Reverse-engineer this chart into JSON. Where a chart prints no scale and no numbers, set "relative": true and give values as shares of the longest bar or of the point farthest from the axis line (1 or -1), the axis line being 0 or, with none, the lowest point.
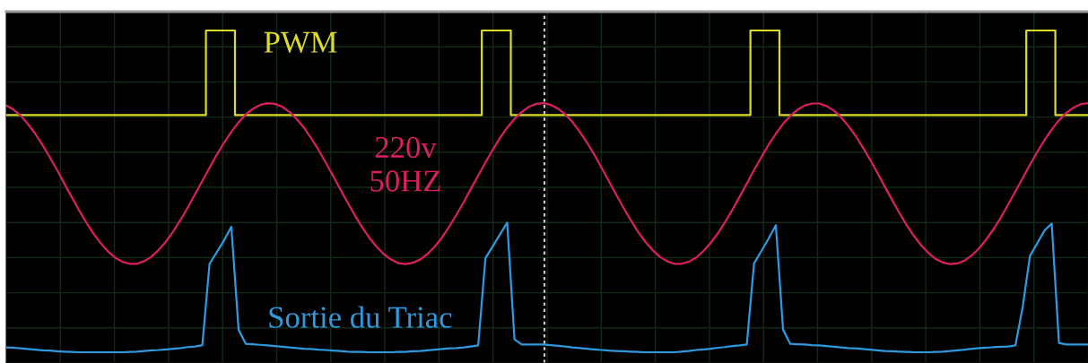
{
  "chart_data": {
    "type": "line",
    "relative": true,
    "grid": true,
    "categories": [
      null,
      null,
      null,
      null,
      null,
      null,
      null,
      null,
      null,
      null,
      null,
      null,
      null,
      null,
      null,
      null,
      null,
      null,
      null,
      null,
      null,
      null,
      null,
      null,
      null,
      null,
      null,
      null,
      null,
      null,
      null,
      null,
      null,
      null,
      null,
      null,
      null,
      null,
      null,
      null,
      null,
      null,
      null,
      null,
      null,
      null,
      null,
      null,
      null,
      null,
      null,
      null,
      null,
      null,
      null,
      null,
      null,
      null,
      null,
      null,
      null,
      null,
      null,
      null,
      null,
      null,
      null,
      null,
      null,
      null,
      null,
      null,
      null,
      null,
      null,
      null,
      null,
      null,
      null,
      null,
      null,
      null,
      null,
      null,
      null,
      null,
      null,
      null,
      null,
      null,
      null,
      null,
      null,
      null,
      null,
      null,
      null,
      null,
      null,
      null,
      null,
      null,
      null,
      null,
      null,
      null,
      null,
      null,
      null,
      null,
      null,
      null,
      null,
      null,
      null,
      null,
      null,
      null,
      null,
      null,
      null,
      null,
      null,
      null,
      null,
      null,
      null,
      null,
      null,
      null,
      null,
      null,
      null,
      null,
      null,
      null,
      null,
      null,
      null,
      null,
      null,
      null,
      null,
      null,
      null,
      null,
      null,
      null,
      null,
      null
    ],
    "series": [
      {
        "name": "PWM",
        "type": "step",
        "color": "#dcdc28",
        "values": [
          0.737,
          0.737,
          0.737,
          0.737,
          0.737,
          0.737,
          0.737,
          0.737,
          0.737,
          0.737,
          0.737,
          0.737,
          0.737,
          0.737,
          0.737,
          0.737,
          0.737,
          0.737,
          0.737,
          0.737,
          0.737,
          0.737,
          0.737,
          0.737,
          0.737,
          0.737,
          0.737,
          0.737,
          1.0,
          1.0,
          1.0,
          1.0,
          0.737,
          0.737,
          0.737,
          0.737,
          0.737,
          0.737,
          0.737,
          0.737,
          0.737,
          0.737,
          0.737,
          0.737,
          0.737,
          0.737,
          0.737,
          0.737,
          0.737,
          0.737,
          0.737,
          0.737,
          0.737,
          0.737,
          0.737,
          0.737,
          0.737,
          0.737,
          0.737,
          0.737,
          0.737,
          0.737,
          0.737,
          0.737,
          0.737,
          0.737,
          1.0,
          1.0,
          1.0,
          1.0,
          0.737,
          0.737,
          0.737,
          0.737,
          0.737,
          0.737,
          0.737,
          0.737,
          0.737,
          0.737,
          0.737,
          0.737,
          0.737,
          0.737,
          0.737,
          0.737,
          0.737,
          0.737,
          0.737,
          0.737,
          0.737,
          0.737,
          0.737,
          0.737,
          0.737,
          0.737,
          0.737,
          0.737,
          0.737,
          0.737,
          0.737,
          0.737,
          0.737,
          1.0,
          1.0,
          1.0,
          1.0,
          0.737,
          0.737,
          0.737,
          0.737,
          0.737,
          0.737,
          0.737,
          0.737,
          0.737,
          0.737,
          0.737,
          0.737,
          0.737,
          0.737,
          0.737,
          0.737,
          0.737,
          0.737,
          0.737,
          0.737,
          0.737,
          0.737,
          0.737,
          0.737,
          0.737,
          0.737,
          0.737,
          0.737,
          0.737,
          0.737,
          0.737,
          0.737,
          0.737,
          0.737,
          1.0,
          1.0,
          1.0,
          1.0,
          0.737,
          0.737,
          0.737,
          0.737,
          0.737
        ]
      },
      {
        "name": "220v\n50HZ",
        "color": "#dc1e64",
        "values": [
          0.767,
          0.754,
          0.735,
          0.709,
          0.679,
          0.644,
          0.606,
          0.566,
          0.524,
          0.483,
          0.442,
          0.404,
          0.369,
          0.339,
          0.313,
          0.294,
          0.281,
          0.275,
          0.275,
          0.283,
          0.297,
          0.318,
          0.344,
          0.376,
          0.411,
          0.45,
          0.491,
          0.532,
          0.574,
          0.614,
          0.651,
          0.685,
          0.715,
          0.739,
          0.757,
          0.769,
          0.774,
          0.772,
          0.763,
          0.747,
          0.725,
          0.698,
          0.665,
          0.629,
          0.59,
          0.549,
          0.507,
          0.466,
          0.426,
          0.389,
          0.356,
          0.328,
          0.305,
          0.288,
          0.277,
          0.274,
          0.278,
          0.288,
          0.305,
          0.328,
          0.356,
          0.39,
          0.427,
          0.466,
          0.508,
          0.549,
          0.59,
          0.629,
          0.666,
          0.698,
          0.725,
          0.747,
          0.763,
          0.772,
          0.774,
          0.769,
          0.757,
          0.739,
          0.715,
          0.685,
          0.651,
          0.614,
          0.573,
          0.532,
          0.49,
          0.45,
          0.411,
          0.375,
          0.344,
          0.318,
          0.297,
          0.283,
          0.275,
          0.275,
          0.281,
          0.294,
          0.314,
          0.339,
          0.369,
          0.404,
          0.442,
          0.483,
          0.524,
          0.566,
          0.606,
          0.645,
          0.679,
          0.71,
          0.735,
          0.754,
          0.767,
          0.773,
          0.773,
          0.765,
          0.751,
          0.73,
          0.703,
          0.672,
          0.636,
          0.598,
          0.557,
          0.515,
          0.474,
          0.434,
          0.396,
          0.362,
          0.333,
          0.309,
          0.29,
          0.279,
          0.274,
          0.276,
          0.285,
          0.301,
          0.323,
          0.351,
          0.383,
          0.419,
          0.459,
          0.5,
          0.541,
          0.583,
          0.622,
          0.659,
          0.692,
          0.721,
          0.744,
          0.76,
          0.771,
          0.774
        ]
      },
      {
        "name": "Sortie du Triac",
        "color": "#2e9ae0",
        "values": [
          0.015,
          0.014,
          0.012,
          0.01,
          0.008,
          0.006,
          0.005,
          0.003,
          0.002,
          0.001,
          0,
          0,
          0,
          0,
          0,
          0,
          0,
          0.001,
          0.002,
          0.004,
          0.006,
          0.007,
          0.009,
          0.011,
          0.013,
          0.016,
          0.018,
          0.022,
          0.275,
          0.311,
          0.348,
          0.39,
          0.07,
          0.026,
          0.025,
          0.023,
          0.021,
          0.019,
          0.017,
          0.015,
          0.013,
          0.011,
          0.01,
          0.008,
          0.007,
          0.005,
          0.004,
          0.002,
          0.001,
          0.001,
          0,
          0,
          0,
          0,
          0.001,
          0.001,
          0.003,
          0.004,
          0.006,
          0.008,
          0.01,
          0.012,
          0.013,
          0.015,
          0.018,
          0.021,
          0.292,
          0.329,
          0.366,
          0.403,
          0.04,
          0.024,
          0.024,
          0.024,
          0.024,
          0.022,
          0.02,
          0.018,
          0.015,
          0.013,
          0.011,
          0.009,
          0.007,
          0.005,
          0.004,
          0.003,
          0.002,
          0.001,
          0,
          0,
          0,
          0,
          0,
          0.002,
          0.004,
          0.007,
          0.009,
          0.011,
          0.014,
          0.016,
          0.019,
          0.021,
          0.024,
          0.276,
          0.314,
          0.353,
          0.395,
          0.07,
          0.026,
          0.025,
          0.024,
          0.022,
          0.021,
          0.019,
          0.017,
          0.015,
          0.013,
          0.012,
          0.01,
          0.008,
          0.006,
          0.004,
          0.003,
          0.002,
          0.001,
          0,
          0,
          0,
          0.001,
          0.002,
          0.004,
          0.006,
          0.008,
          0.011,
          0.013,
          0.014,
          0.016,
          0.017,
          0.018,
          0.021,
          0.14,
          0.299,
          0.338,
          0.378,
          0.4,
          0.029,
          0.024,
          0.024,
          0.024,
          0.024
        ]
      }
    ]
  }
}
